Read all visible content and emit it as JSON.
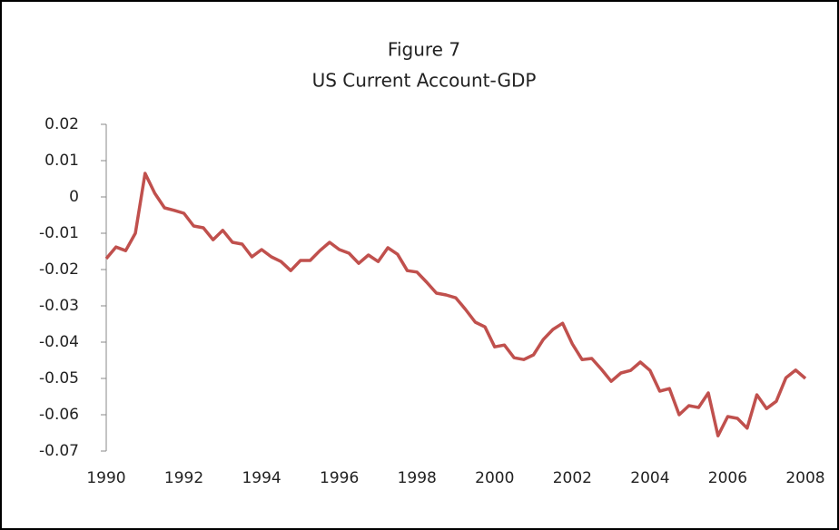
{
  "chart_data": {
    "type": "line",
    "title": "Figure 7",
    "subtitle": "US Current Account-GDP",
    "x": [
      1990,
      1990.25,
      1990.5,
      1990.75,
      1991,
      1991.25,
      1991.5,
      1991.75,
      1992,
      1992.25,
      1992.5,
      1992.75,
      1993,
      1993.25,
      1993.5,
      1993.75,
      1994,
      1994.25,
      1994.5,
      1994.75,
      1995,
      1995.25,
      1995.5,
      1995.75,
      1996,
      1996.25,
      1996.5,
      1996.75,
      1997,
      1997.25,
      1997.5,
      1997.75,
      1998,
      1998.25,
      1998.5,
      1998.75,
      1999,
      1999.25,
      1999.5,
      1999.75,
      2000,
      2000.25,
      2000.5,
      2000.75,
      2001,
      2001.25,
      2001.5,
      2001.75,
      2002,
      2002.25,
      2002.5,
      2002.75,
      2003,
      2003.25,
      2003.5,
      2003.75,
      2004,
      2004.25,
      2004.5,
      2004.75,
      2005,
      2005.25,
      2005.5,
      2005.75,
      2006,
      2006.25,
      2006.5,
      2006.75,
      2007,
      2007.25,
      2007.5,
      2007.75,
      2008
    ],
    "values": [
      -0.017,
      -0.0138,
      -0.0148,
      -0.01,
      0.0065,
      0.001,
      -0.003,
      -0.0037,
      -0.0045,
      -0.008,
      -0.0085,
      -0.0118,
      -0.0092,
      -0.0125,
      -0.013,
      -0.0165,
      -0.0145,
      -0.0165,
      -0.0178,
      -0.0203,
      -0.0175,
      -0.0175,
      -0.0148,
      -0.0125,
      -0.0145,
      -0.0155,
      -0.0183,
      -0.016,
      -0.0178,
      -0.014,
      -0.0158,
      -0.0203,
      -0.0207,
      -0.0235,
      -0.0265,
      -0.027,
      -0.0278,
      -0.031,
      -0.0345,
      -0.0358,
      -0.0413,
      -0.0408,
      -0.0443,
      -0.0448,
      -0.0435,
      -0.0393,
      -0.0365,
      -0.0348,
      -0.0405,
      -0.0448,
      -0.0445,
      -0.0475,
      -0.0508,
      -0.0485,
      -0.0478,
      -0.0455,
      -0.0478,
      -0.0535,
      -0.0528,
      -0.06,
      -0.0575,
      -0.058,
      -0.054,
      -0.0658,
      -0.0605,
      -0.061,
      -0.0637,
      -0.0545,
      -0.0583,
      -0.0563,
      -0.0498,
      -0.0477,
      -0.05
    ],
    "color": "#c0504d",
    "xlim": [
      1990,
      2008
    ],
    "xticks": [
      1990,
      1992,
      1994,
      1996,
      1998,
      2000,
      2002,
      2004,
      2006,
      2008
    ],
    "ylim": [
      -0.07,
      0.02
    ],
    "yticks": [
      0.02,
      0.01,
      0,
      -0.01,
      -0.02,
      -0.03,
      -0.04,
      -0.05,
      -0.06,
      -0.07
    ],
    "grid": false
  }
}
